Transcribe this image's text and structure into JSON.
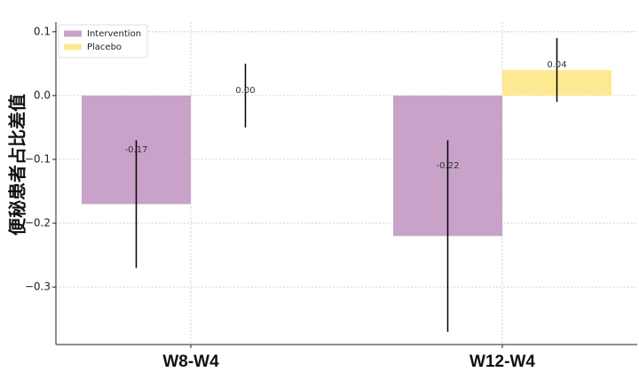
{
  "chart_data": {
    "type": "bar",
    "title": "",
    "xlabel": "",
    "ylabel": "便秘患者占比差值",
    "categories": [
      "W8-W4",
      "W12-W4"
    ],
    "series": [
      {
        "name": "Intervention",
        "values": [
          -0.17,
          -0.22
        ],
        "err_low": [
          -0.27,
          -0.37
        ],
        "err_high": [
          -0.07,
          -0.07
        ],
        "labels": [
          "-0.17",
          "-0.22"
        ],
        "color": "#c8a2c8"
      },
      {
        "name": "Placebo",
        "values": [
          0.0,
          0.04
        ],
        "err_low": [
          -0.05,
          -0.01
        ],
        "err_high": [
          0.05,
          0.09
        ],
        "labels": [
          "0.00",
          "0.04"
        ],
        "color": "#fde992"
      }
    ],
    "ylim": [
      -0.39,
      0.115
    ],
    "yticks": [
      "0.1",
      "0.0",
      "−0.1",
      "−0.2",
      "−0.3"
    ],
    "ytick_values": [
      0.1,
      0.0,
      -0.1,
      -0.2,
      -0.3
    ],
    "grid": true,
    "legend_position": "top-left"
  }
}
